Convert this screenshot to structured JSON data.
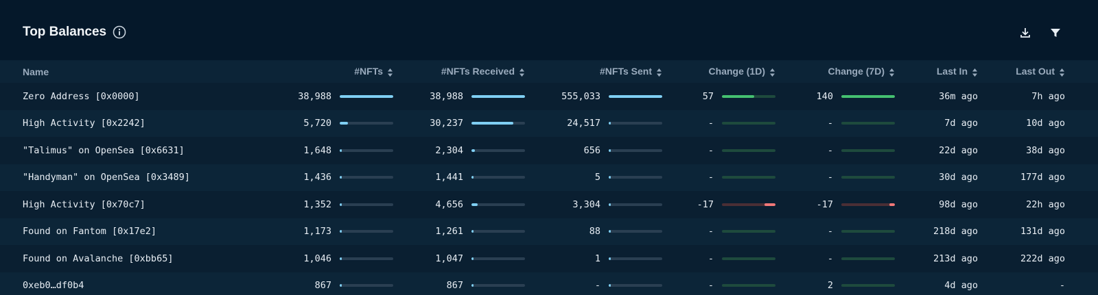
{
  "title": "Top Balances",
  "columns": {
    "name": "Name",
    "nfts": "#NFTs",
    "received": "#NFTs Received",
    "sent": "#NFTs Sent",
    "change1d": "Change (1D)",
    "change7d": "Change (7D)",
    "last_in": "Last In",
    "last_out": "Last Out"
  },
  "rows": [
    {
      "name": "Zero Address [0x0000]",
      "nfts": "38,988",
      "nfts_pct": 100,
      "received": "38,988",
      "received_pct": 100,
      "sent": "555,033",
      "sent_pct": 100,
      "c1d": "57",
      "c1d_pct": 60,
      "c1d_sign": "pos",
      "c7d": "140",
      "c7d_pct": 100,
      "c7d_sign": "pos",
      "last_in": "36m ago",
      "last_out": "7h ago"
    },
    {
      "name": "High Activity [0x2242]",
      "nfts": "5,720",
      "nfts_pct": 15,
      "received": "30,237",
      "received_pct": 78,
      "sent": "24,517",
      "sent_pct": 4,
      "c1d": "-",
      "c1d_pct": 0,
      "c1d_sign": "none",
      "c7d": "-",
      "c7d_pct": 0,
      "c7d_sign": "none",
      "last_in": "7d ago",
      "last_out": "10d ago"
    },
    {
      "name": "\"Talimus\" on OpenSea [0x6631]",
      "nfts": "1,648",
      "nfts_pct": 4,
      "received": "2,304",
      "received_pct": 6,
      "sent": "656",
      "sent_pct": 0,
      "c1d": "-",
      "c1d_pct": 0,
      "c1d_sign": "none",
      "c7d": "-",
      "c7d_pct": 0,
      "c7d_sign": "none",
      "last_in": "22d ago",
      "last_out": "38d ago"
    },
    {
      "name": "\"Handyman\" on OpenSea [0x3489]",
      "nfts": "1,436",
      "nfts_pct": 4,
      "received": "1,441",
      "received_pct": 4,
      "sent": "5",
      "sent_pct": 0,
      "c1d": "-",
      "c1d_pct": 0,
      "c1d_sign": "none",
      "c7d": "-",
      "c7d_pct": 0,
      "c7d_sign": "none",
      "last_in": "30d ago",
      "last_out": "177d ago"
    },
    {
      "name": "High Activity [0x70c7]",
      "nfts": "1,352",
      "nfts_pct": 3,
      "received": "4,656",
      "received_pct": 12,
      "sent": "3,304",
      "sent_pct": 1,
      "c1d": "-17",
      "c1d_pct": 20,
      "c1d_sign": "neg",
      "c7d": "-17",
      "c7d_pct": 10,
      "c7d_sign": "neg",
      "last_in": "98d ago",
      "last_out": "22h ago"
    },
    {
      "name": "Found on Fantom [0x17e2]",
      "nfts": "1,173",
      "nfts_pct": 3,
      "received": "1,261",
      "received_pct": 3,
      "sent": "88",
      "sent_pct": 0,
      "c1d": "-",
      "c1d_pct": 0,
      "c1d_sign": "none",
      "c7d": "-",
      "c7d_pct": 0,
      "c7d_sign": "none",
      "last_in": "218d ago",
      "last_out": "131d ago"
    },
    {
      "name": "Found on Avalanche [0xbb65]",
      "nfts": "1,046",
      "nfts_pct": 3,
      "received": "1,047",
      "received_pct": 3,
      "sent": "1",
      "sent_pct": 0,
      "c1d": "-",
      "c1d_pct": 0,
      "c1d_sign": "none",
      "c7d": "-",
      "c7d_pct": 0,
      "c7d_sign": "none",
      "last_in": "213d ago",
      "last_out": "222d ago"
    },
    {
      "name": "0xeb0…df0b4",
      "nfts": "867",
      "nfts_pct": 2,
      "received": "867",
      "received_pct": 2,
      "sent": "-",
      "sent_pct": 0,
      "c1d": "-",
      "c1d_pct": 0,
      "c1d_sign": "none",
      "c7d": "2",
      "c7d_pct": 0,
      "c7d_sign": "none",
      "last_in": "4d ago",
      "last_out": "-"
    }
  ],
  "colors": {
    "bar_fill": "#7fcff3",
    "positive": "#45c070",
    "negative": "#f07878",
    "background": "#061a2b"
  }
}
